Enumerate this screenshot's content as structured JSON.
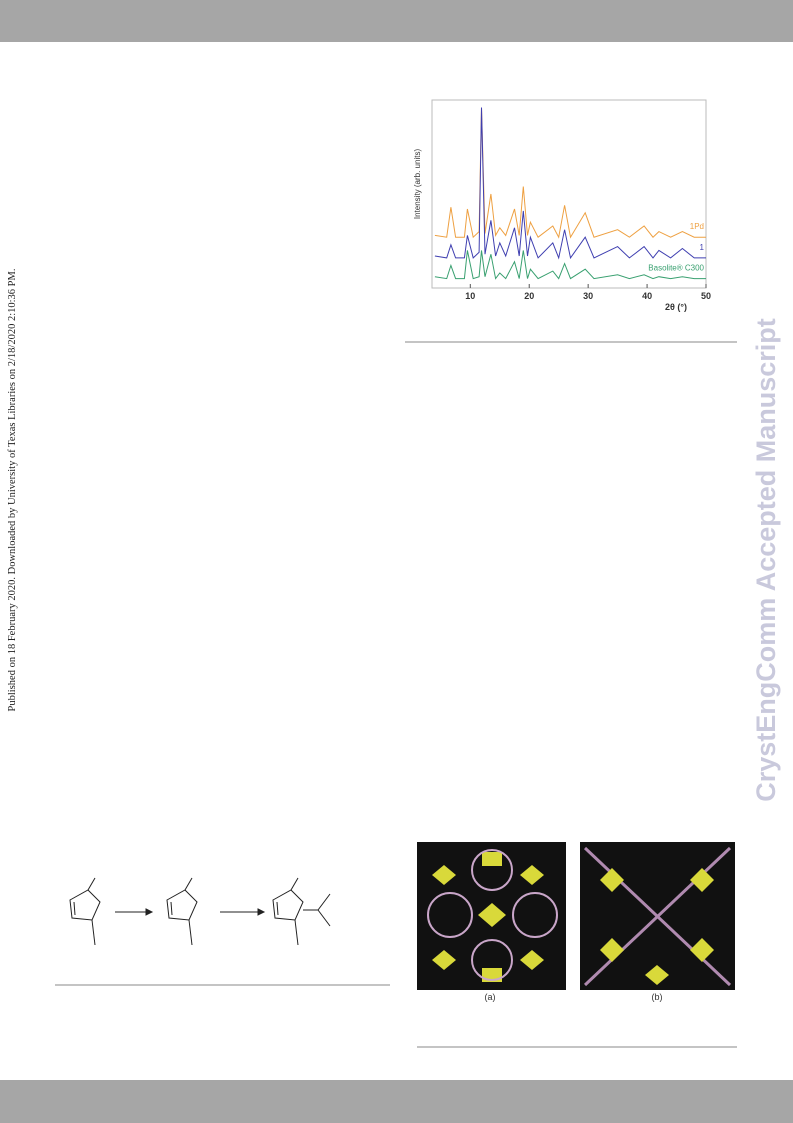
{
  "side_note": "Published on 18 February 2020. Downloaded by University of Texas Libraries on 2/18/2020 2:10:36 PM.",
  "watermark": "CrystEngComm Accepted Manuscript",
  "figure_labels": [
    "(a)",
    "(b)"
  ],
  "chart_data": {
    "type": "line",
    "ylabel": "Intensity (arb. units)",
    "xlabel": "2θ (°)",
    "xlim": [
      3.5,
      50
    ],
    "xticks": [
      10,
      20,
      30,
      40,
      50
    ],
    "ylim": [
      0,
      100
    ],
    "x": [
      4,
      6,
      6.7,
      7.5,
      9,
      9.5,
      10.5,
      11.5,
      11.9,
      12.5,
      13.5,
      14.3,
      15,
      16,
      17.5,
      18.3,
      19,
      19.7,
      20.2,
      21.5,
      24,
      25,
      26,
      27,
      29.5,
      31,
      35,
      37,
      39.5,
      41,
      42,
      44,
      46,
      48,
      50
    ],
    "series": [
      {
        "name": "1Pd",
        "color": "#eea041",
        "values": [
          28,
          27,
          43,
          27,
          27,
          42,
          27,
          30,
          96,
          29,
          50,
          28,
          32,
          28,
          42,
          28,
          54,
          28,
          35,
          27,
          33,
          27,
          44,
          27,
          40,
          27,
          31,
          27,
          33,
          27,
          30,
          27,
          30,
          27,
          27
        ]
      },
      {
        "name": "1",
        "color": "#3f3fb0",
        "values": [
          17,
          16,
          23,
          16,
          16,
          28,
          16,
          19,
          96,
          18,
          36,
          17,
          24,
          17,
          32,
          17,
          41,
          17,
          27,
          16,
          24,
          16,
          31,
          16,
          27,
          16,
          22,
          16,
          22,
          16,
          20,
          16,
          21,
          16,
          16
        ]
      },
      {
        "name": "Basolite® C300",
        "color": "#39a070",
        "values": [
          6,
          5,
          12,
          5,
          5,
          20,
          5,
          6,
          20,
          6,
          18,
          5,
          8,
          5,
          14,
          5,
          20,
          5,
          10,
          5,
          9,
          5,
          13,
          5,
          10,
          5,
          7,
          5,
          7,
          5,
          6,
          5,
          6,
          5,
          5
        ]
      }
    ]
  }
}
